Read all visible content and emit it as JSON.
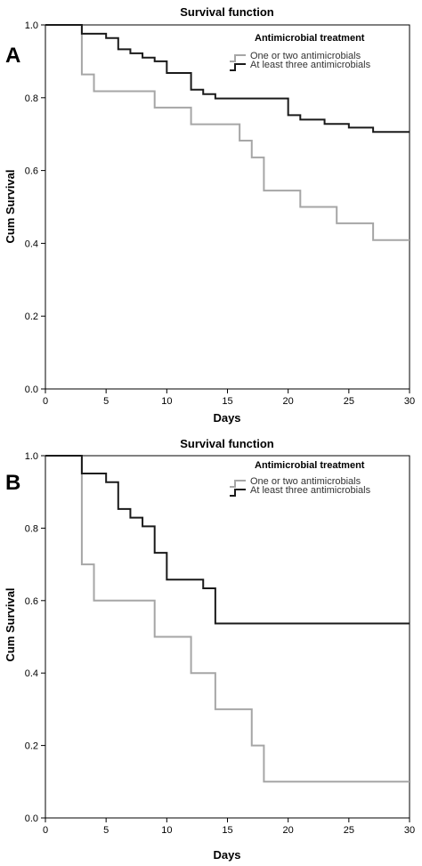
{
  "chart_data": [
    {
      "panel_label": "A",
      "type": "line",
      "subtype": "step",
      "title": "Survival function",
      "xlabel": "Days",
      "ylabel": "Cum Survival",
      "xlim": [
        0,
        30
      ],
      "ylim": [
        0.0,
        1.0
      ],
      "xticks": [
        "0",
        "5",
        "10",
        "15",
        "20",
        "25",
        "30"
      ],
      "yticks": [
        "0.0",
        "0.2",
        "0.4",
        "0.6",
        "0.8",
        "1.0"
      ],
      "grid": false,
      "legend": {
        "title": "Antimicrobial treatment",
        "placement": "top-right",
        "entries": [
          "One or two antimicrobials",
          "At least three antimicrobials"
        ]
      },
      "series": [
        {
          "name": "One or two antimicrobials",
          "color": "#a6a6a6",
          "x": [
            0,
            3,
            4,
            9,
            12,
            16,
            17,
            18,
            21,
            24,
            27,
            30
          ],
          "y": [
            1.0,
            0.864,
            0.818,
            0.773,
            0.727,
            0.682,
            0.636,
            0.545,
            0.5,
            0.455,
            0.409,
            0.409
          ]
        },
        {
          "name": "At least three antimicrobials",
          "color": "#1a1a1a",
          "x": [
            0,
            3,
            5,
            6,
            7,
            8,
            9,
            10,
            12,
            13,
            14,
            20,
            21,
            23,
            25,
            27,
            30
          ],
          "y": [
            1.0,
            0.976,
            0.964,
            0.933,
            0.922,
            0.91,
            0.9,
            0.868,
            0.822,
            0.81,
            0.798,
            0.752,
            0.74,
            0.728,
            0.718,
            0.706,
            0.706
          ]
        }
      ]
    },
    {
      "panel_label": "B",
      "type": "line",
      "subtype": "step",
      "title": "Survival function",
      "xlabel": "Days",
      "ylabel": "Cum Survival",
      "xlim": [
        0,
        30
      ],
      "ylim": [
        0.0,
        1.0
      ],
      "xticks": [
        "0",
        "5",
        "10",
        "15",
        "20",
        "25",
        "30"
      ],
      "yticks": [
        "0.0",
        "0.2",
        "0.4",
        "0.6",
        "0.8",
        "1.0"
      ],
      "grid": false,
      "legend": {
        "title": "Antimicrobial treatment",
        "placement": "top-right",
        "entries": [
          "One or two antimicrobials",
          "At least three antimicrobials"
        ]
      },
      "series": [
        {
          "name": "One or two antimicrobials",
          "color": "#a6a6a6",
          "x": [
            0,
            3,
            4,
            9,
            12,
            14,
            17,
            18,
            30
          ],
          "y": [
            1.0,
            0.7,
            0.6,
            0.5,
            0.4,
            0.3,
            0.2,
            0.1,
            0.1
          ]
        },
        {
          "name": "At least three antimicrobials",
          "color": "#1a1a1a",
          "x": [
            0,
            3,
            5,
            6,
            7,
            8,
            9,
            10,
            13,
            14,
            30
          ],
          "y": [
            1.0,
            0.951,
            0.927,
            0.853,
            0.829,
            0.805,
            0.732,
            0.658,
            0.634,
            0.537,
            0.537
          ]
        }
      ]
    }
  ]
}
